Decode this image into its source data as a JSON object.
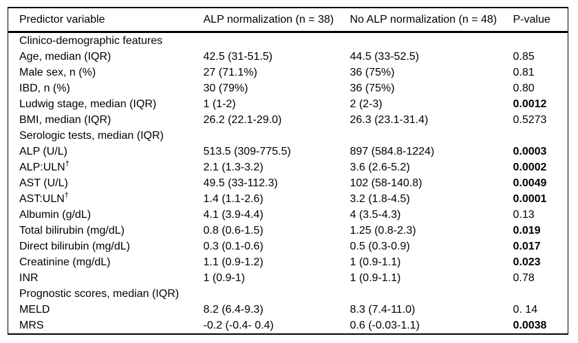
{
  "table": {
    "columns": [
      "Predictor variable",
      "ALP normalization (n = 38)",
      "No ALP normalization (n = 48)",
      "P-value"
    ],
    "rows": [
      {
        "type": "section",
        "label": "Clinico-demographic features",
        "alp": "",
        "noalp": "",
        "p": "",
        "p_bold": false
      },
      {
        "type": "data",
        "label": "Age, median (IQR)",
        "alp": "42.5 (31-51.5)",
        "noalp": "44.5 (33-52.5)",
        "p": "0.85",
        "p_bold": false
      },
      {
        "type": "data",
        "label": "Male sex, n (%)",
        "alp": "27 (71.1%)",
        "noalp": "36 (75%)",
        "p": "0.81",
        "p_bold": false
      },
      {
        "type": "data",
        "label": "IBD, n (%)",
        "alp": "30 (79%)",
        "noalp": "36 (75%)",
        "p": "0.80",
        "p_bold": false
      },
      {
        "type": "data",
        "label": "Ludwig stage, median (IQR)",
        "alp": "1 (1-2)",
        "noalp": "2 (2-3)",
        "p": "0.0012",
        "p_bold": true
      },
      {
        "type": "data",
        "label": "BMI, median (IQR)",
        "alp": "26.2 (22.1-29.0)",
        "noalp": "26.3 (23.1-31.4)",
        "p": "0.5273",
        "p_bold": false
      },
      {
        "type": "section",
        "label": "Serologic tests, median (IQR)",
        "alp": "",
        "noalp": "",
        "p": "",
        "p_bold": false
      },
      {
        "type": "data",
        "label": "ALP (U/L)",
        "alp": "513.5 (309-775.5)",
        "noalp": "897 (584.8-1224)",
        "p": "0.0003",
        "p_bold": true
      },
      {
        "type": "data",
        "label": "ALP:ULN",
        "sup": "†",
        "alp": "2.1 (1.3-3.2)",
        "noalp": "3.6 (2.6-5.2)",
        "p": "0.0002",
        "p_bold": true
      },
      {
        "type": "data",
        "label": "AST (U/L)",
        "alp": "49.5 (33-112.3)",
        "noalp": "102 (58-140.8)",
        "p": "0.0049",
        "p_bold": true
      },
      {
        "type": "data",
        "label": "AST:ULN",
        "sup": "†",
        "alp": "1.4 (1.1-2.6)",
        "noalp": "3.2 (1.8-4.5)",
        "p": "0.0001",
        "p_bold": true
      },
      {
        "type": "data",
        "label": "Albumin (g/dL)",
        "alp": "4.1 (3.9-4.4)",
        "noalp": "4 (3.5-4.3)",
        "p": "0.13",
        "p_bold": false
      },
      {
        "type": "data",
        "label": "Total bilirubin (mg/dL)",
        "alp": "0.8 (0.6-1.5)",
        "noalp": "1.25 (0.8-2.3)",
        "p": "0.019",
        "p_bold": true
      },
      {
        "type": "data",
        "label": "Direct bilirubin (mg/dL)",
        "alp": "0.3 (0.1-0.6)",
        "noalp": "0.5 (0.3-0.9)",
        "p": "0.017",
        "p_bold": true
      },
      {
        "type": "data",
        "label": "Creatinine (mg/dL)",
        "alp": "1.1 (0.9-1.2)",
        "noalp": "1 (0.9-1.1)",
        "p": "0.023",
        "p_bold": true
      },
      {
        "type": "data",
        "label": "INR",
        "alp": "1 (0.9-1)",
        "noalp": "1 (0.9-1.1)",
        "p": "0.78",
        "p_bold": false
      },
      {
        "type": "section",
        "label": "Prognostic scores, median (IQR)",
        "alp": "",
        "noalp": "",
        "p": "",
        "p_bold": false
      },
      {
        "type": "data",
        "label": "MELD",
        "alp": "8.2 (6.4-9.3)",
        "noalp": "8.3 (7.4-11.0)",
        "p": "0. 14",
        "p_bold": false
      },
      {
        "type": "data",
        "label": "MRS",
        "alp": "-0.2 (-0.4- 0.4)",
        "noalp": "0.6 (-0.03-1.1)",
        "p": "0.0038",
        "p_bold": true
      }
    ],
    "colors": {
      "text": "#000000",
      "border": "#000000",
      "background": "#ffffff"
    }
  }
}
